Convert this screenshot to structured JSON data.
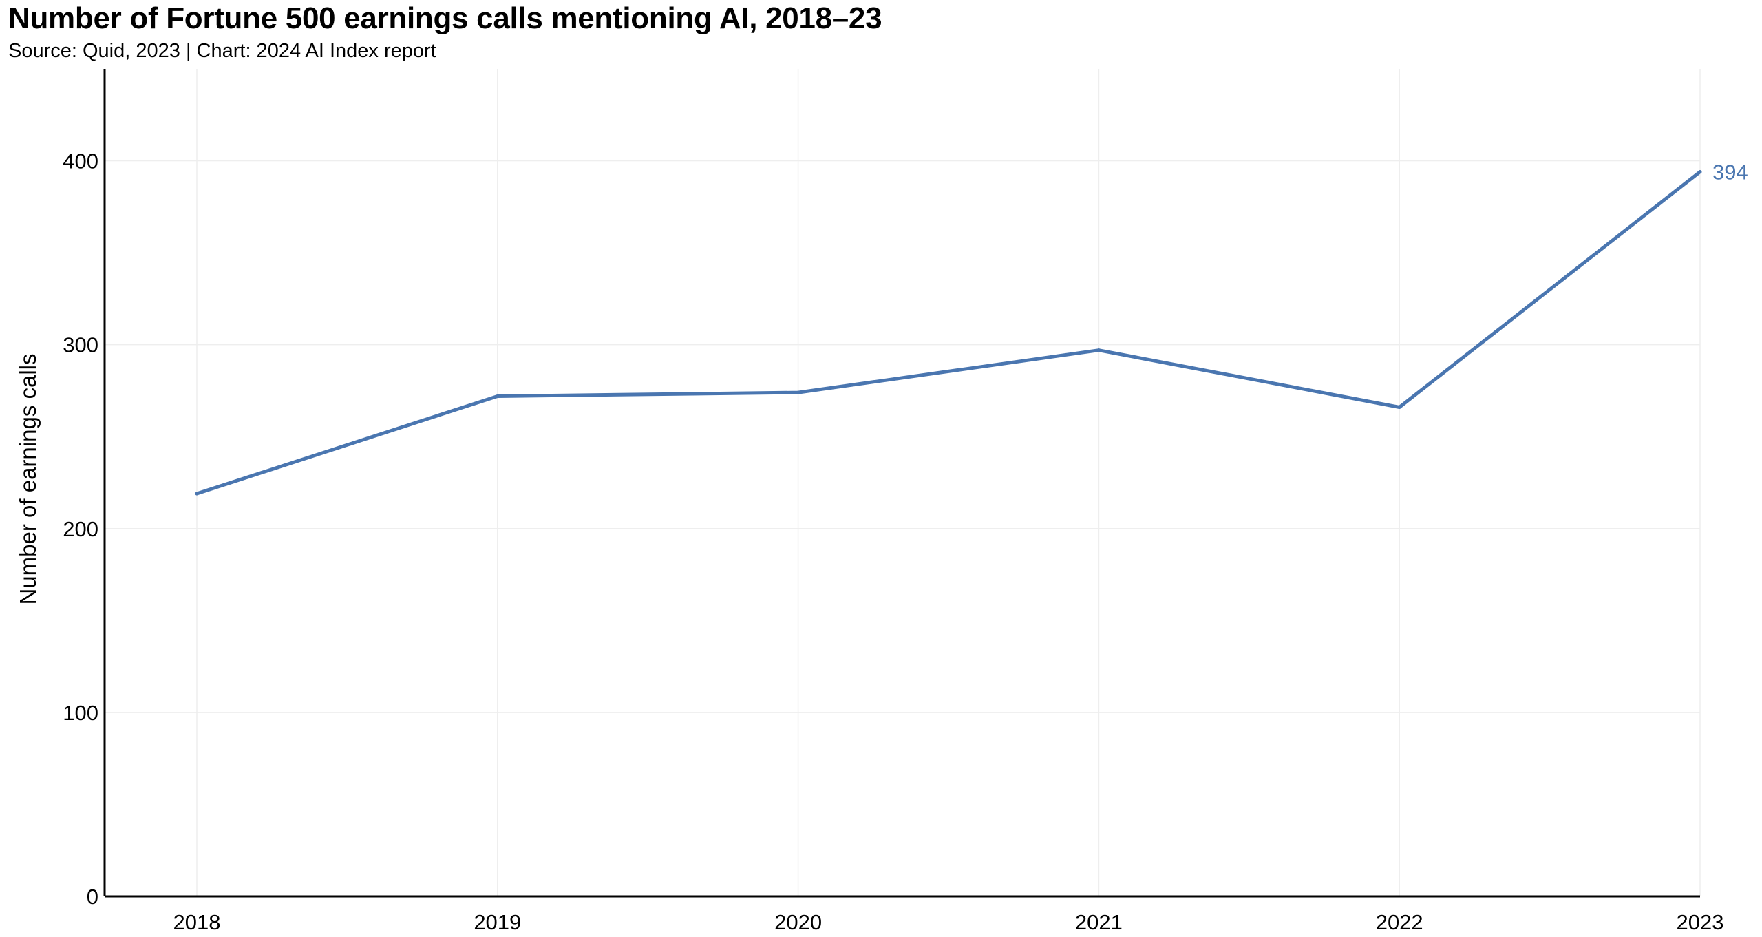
{
  "title": "Number of Fortune 500 earnings calls mentioning AI, 2018–23",
  "subtitle": "Source: Quid, 2023 | Chart: 2024 AI Index report",
  "colors": {
    "series": "#4a76b0",
    "axis": "#000000",
    "grid": "#eeeeee",
    "text": "#000000"
  },
  "chart_data": {
    "type": "line",
    "title": "Number of Fortune 500 earnings calls mentioning AI, 2018–23",
    "subtitle": "Source: Quid, 2023 | Chart: 2024 AI Index report",
    "xlabel": "",
    "ylabel": "Number of earnings calls",
    "categories": [
      "2018",
      "2019",
      "2020",
      "2021",
      "2022",
      "2023"
    ],
    "series": [
      {
        "values": [
          219,
          272,
          274,
          297,
          266,
          394
        ],
        "color": "#4a76b0"
      }
    ],
    "end_label": "394",
    "ylim": [
      0,
      450
    ],
    "yticks": [
      "0",
      "100",
      "200",
      "300",
      "400"
    ],
    "ytick_values": [
      0,
      100,
      200,
      300,
      400
    ],
    "grid": true,
    "legend": "none"
  }
}
